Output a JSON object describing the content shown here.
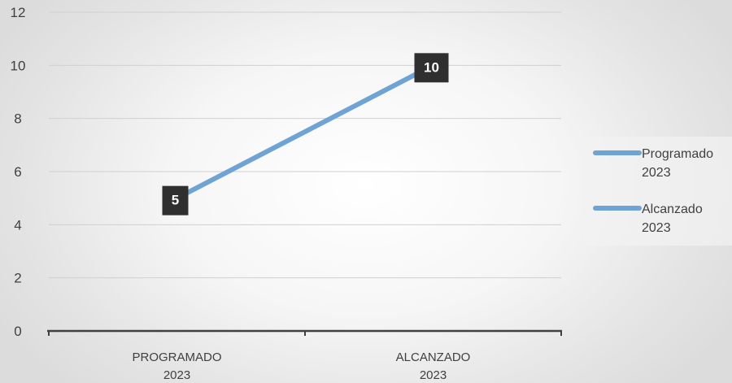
{
  "chart_data": {
    "type": "line",
    "categories": [
      [
        "PROGRAMADO",
        "2023"
      ],
      [
        "ALCANZADO",
        "2023"
      ]
    ],
    "series": [
      {
        "name": "Programado 2023",
        "values": [
          5,
          null
        ]
      },
      {
        "name": "Alcanzado 2023",
        "values": [
          null,
          10
        ]
      }
    ],
    "plotted_values": [
      5,
      10
    ],
    "data_labels": [
      "5",
      "10"
    ],
    "ylim": [
      0,
      12
    ],
    "y_ticks": [
      0,
      2,
      4,
      6,
      8,
      10,
      12
    ],
    "legend": {
      "position": "right",
      "entries": [
        [
          "Programado",
          "2023"
        ],
        [
          "Alcanzado",
          "2023"
        ]
      ]
    },
    "grid": true,
    "colors": {
      "line": "#6fa3d4",
      "gridline": "#d0d0d0",
      "axis": "#404040",
      "data_label_bg": "#2f2f2f"
    }
  }
}
